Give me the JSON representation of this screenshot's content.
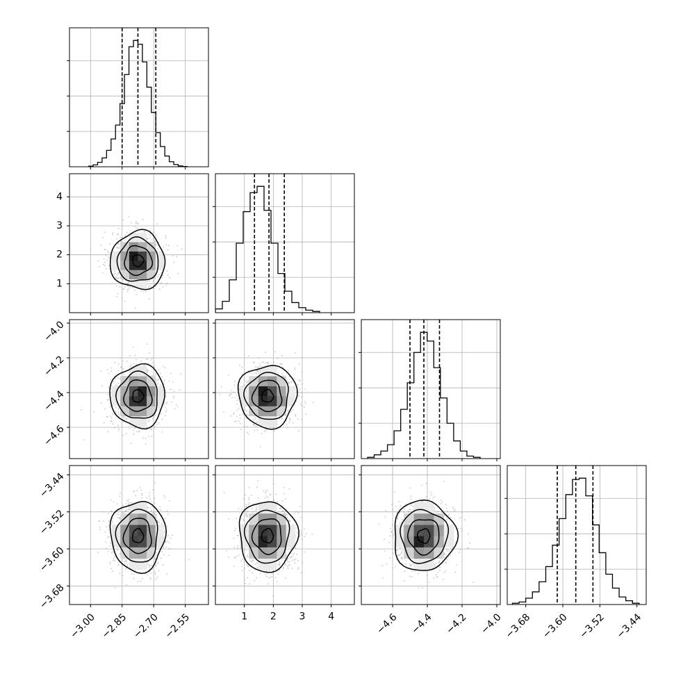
{
  "chart_data": {
    "type": "corner",
    "parameters": [
      {
        "range": [
          -3.1,
          -2.44
        ],
        "ticks": [
          -3.0,
          -2.85,
          -2.7,
          -2.55
        ],
        "tick_labels": [
          "−3.00",
          "−2.85",
          "−2.70",
          "−2.55"
        ],
        "quantiles": [
          -2.85,
          -2.775,
          -2.69
        ],
        "hist": [
          0.005,
          0.015,
          0.035,
          0.07,
          0.13,
          0.22,
          0.33,
          0.5,
          0.73,
          0.95,
          1.0,
          0.97,
          0.83,
          0.63,
          0.43,
          0.27,
          0.16,
          0.085,
          0.04,
          0.018,
          0.007,
          0.002
        ],
        "mean": -2.775,
        "sd": 0.065
      },
      {
        "range": [
          0.0,
          4.8
        ],
        "ticks": [
          1,
          2,
          3,
          4
        ],
        "tick_labels": [
          "1",
          "2",
          "3",
          "4"
        ],
        "quantiles": [
          1.35,
          1.85,
          2.38
        ],
        "hist": [
          0.03,
          0.09,
          0.26,
          0.55,
          0.8,
          0.95,
          1.0,
          0.81,
          0.55,
          0.31,
          0.17,
          0.08,
          0.04,
          0.02,
          0.01
        ],
        "mean": 1.8,
        "sd": 0.5
      },
      {
        "range": [
          -4.78,
          -3.98
        ],
        "ticks": [
          -4.6,
          -4.4,
          -4.2,
          -4.0
        ],
        "tick_labels": [
          "−4.6",
          "−4.4",
          "−4.2",
          "−4.0"
        ],
        "quantiles": [
          -4.5,
          -4.42,
          -4.33
        ],
        "hist": [
          0.01,
          0.03,
          0.06,
          0.11,
          0.22,
          0.39,
          0.6,
          0.84,
          1.0,
          0.93,
          0.72,
          0.48,
          0.28,
          0.14,
          0.06,
          0.02,
          0.01
        ],
        "mean": -4.42,
        "sd": 0.09
      },
      {
        "range": [
          -3.72,
          -3.42
        ],
        "ticks": [
          -3.68,
          -3.6,
          -3.52,
          -3.44
        ],
        "tick_labels": [
          "−3.68",
          "−3.60",
          "−3.52",
          "−3.44"
        ],
        "quantiles": [
          -3.612,
          -3.572,
          -3.535
        ],
        "hist": [
          0.01,
          0.02,
          0.05,
          0.1,
          0.18,
          0.3,
          0.47,
          0.68,
          0.87,
          0.99,
          1.0,
          0.86,
          0.63,
          0.41,
          0.24,
          0.13,
          0.06,
          0.03,
          0.01
        ],
        "mean": -3.572,
        "sd": 0.038
      }
    ],
    "grid": true,
    "legend": "none",
    "title": "",
    "xlabel": "",
    "ylabel": ""
  }
}
